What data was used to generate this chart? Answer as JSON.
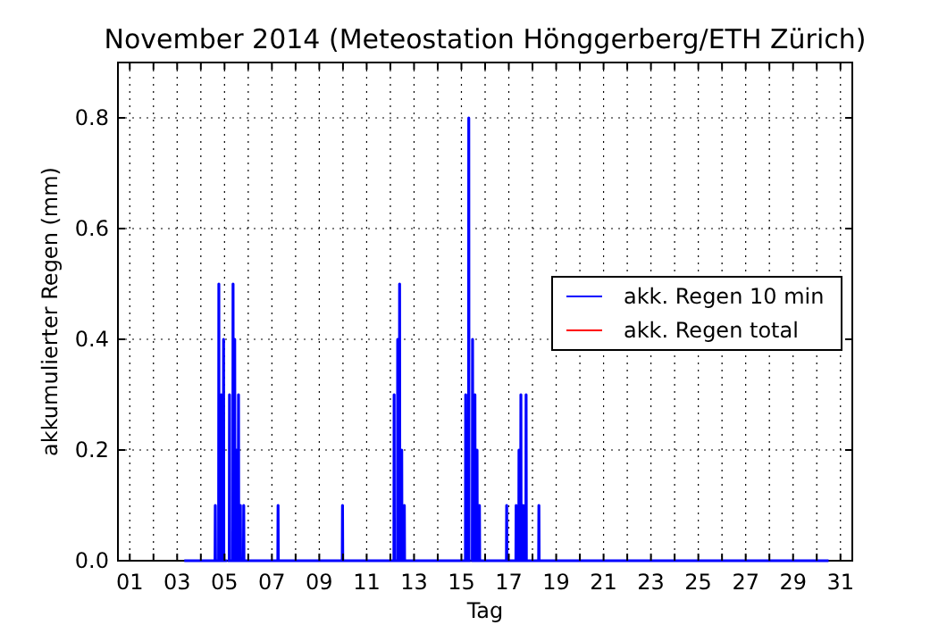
{
  "chart_data": {
    "type": "line",
    "title": "November 2014  (Meteostation Hönggerberg/ETH Zürich)",
    "xlabel": "Tag",
    "ylabel": "akkumulierter Regen (mm)",
    "xlim": [
      0.5,
      31.5
    ],
    "ylim": [
      0,
      0.9
    ],
    "xticks": [
      {
        "value": 1,
        "label": "01"
      },
      {
        "value": 2,
        "label": null
      },
      {
        "value": 3,
        "label": "03"
      },
      {
        "value": 4,
        "label": null
      },
      {
        "value": 5,
        "label": "05"
      },
      {
        "value": 6,
        "label": null
      },
      {
        "value": 7,
        "label": "07"
      },
      {
        "value": 8,
        "label": null
      },
      {
        "value": 9,
        "label": "09"
      },
      {
        "value": 10,
        "label": null
      },
      {
        "value": 11,
        "label": "11"
      },
      {
        "value": 12,
        "label": null
      },
      {
        "value": 13,
        "label": "13"
      },
      {
        "value": 14,
        "label": null
      },
      {
        "value": 15,
        "label": "15"
      },
      {
        "value": 16,
        "label": null
      },
      {
        "value": 17,
        "label": "17"
      },
      {
        "value": 18,
        "label": null
      },
      {
        "value": 19,
        "label": "19"
      },
      {
        "value": 20,
        "label": null
      },
      {
        "value": 21,
        "label": "21"
      },
      {
        "value": 22,
        "label": null
      },
      {
        "value": 23,
        "label": "23"
      },
      {
        "value": 24,
        "label": null
      },
      {
        "value": 25,
        "label": "25"
      },
      {
        "value": 26,
        "label": null
      },
      {
        "value": 27,
        "label": "27"
      },
      {
        "value": 28,
        "label": null
      },
      {
        "value": 29,
        "label": "29"
      },
      {
        "value": 30,
        "label": null
      },
      {
        "value": 31,
        "label": "31"
      }
    ],
    "yticks": [
      {
        "value": 0,
        "label": "0.0"
      },
      {
        "value": 0.2,
        "label": "0.2"
      },
      {
        "value": 0.4,
        "label": "0.4"
      },
      {
        "value": 0.6,
        "label": "0.6"
      },
      {
        "value": 0.8,
        "label": "0.8"
      }
    ],
    "grid": true,
    "legend": "right",
    "marker": "none",
    "series": [
      {
        "name": "akk. Regen 10 min",
        "color": "#0000ff",
        "x": [
          3.3,
          4.6,
          4.61,
          4.62,
          4.75,
          4.76,
          4.77,
          4.85,
          4.86,
          4.87,
          4.95,
          4.96,
          4.97,
          5.1,
          5.11,
          5.12,
          5.2,
          5.21,
          5.22,
          5.35,
          5.36,
          5.37,
          5.42,
          5.43,
          5.44,
          5.5,
          5.51,
          5.52,
          5.58,
          5.59,
          5.6,
          5.66,
          5.67,
          5.68,
          5.8,
          5.81,
          5.82,
          7.25,
          7.26,
          7.27,
          9.97,
          9.98,
          9.99,
          12.15,
          12.16,
          12.17,
          12.3,
          12.31,
          12.32,
          12.38,
          12.39,
          12.4,
          12.47,
          12.48,
          12.49,
          12.58,
          12.59,
          12.6,
          15.17,
          15.18,
          15.19,
          15.3,
          15.31,
          15.32,
          15.39,
          15.4,
          15.41,
          15.46,
          15.47,
          15.48,
          15.56,
          15.57,
          15.58,
          15.65,
          15.66,
          15.67,
          15.75,
          15.76,
          15.77,
          16.9,
          16.91,
          16.92,
          17.3,
          17.31,
          17.32,
          17.42,
          17.43,
          17.44,
          17.5,
          17.51,
          17.52,
          17.6,
          17.61,
          17.62,
          17.72,
          17.73,
          17.74,
          18.26,
          18.27,
          18.28,
          30.5
        ],
        "values": [
          0,
          0,
          0.1,
          0,
          0,
          0.5,
          0,
          0,
          0.3,
          0,
          0,
          0.4,
          0,
          0,
          null,
          0,
          0,
          0.3,
          0,
          0,
          0.5,
          0,
          0,
          0.4,
          0,
          0,
          0.2,
          0,
          0,
          0.3,
          0,
          0,
          0.1,
          0,
          0,
          0.1,
          0,
          0,
          0.1,
          0,
          0,
          0.1,
          0,
          0,
          0.3,
          0,
          0,
          0.4,
          0,
          0,
          0.5,
          0,
          0,
          0.2,
          0,
          0,
          0.1,
          0,
          0,
          0.3,
          0,
          0,
          0.8,
          0,
          0,
          null,
          0,
          0,
          0.4,
          0,
          0,
          0.3,
          0,
          0,
          0.2,
          0,
          0,
          0.1,
          0,
          0,
          0.1,
          0,
          0,
          0.1,
          0,
          0,
          0.2,
          0,
          0,
          0.3,
          0,
          0,
          0.1,
          0,
          0,
          0.3,
          0,
          0,
          0.1,
          0,
          0
        ]
      },
      {
        "name": "akk. Regen total",
        "color": "#ff0000"
      }
    ]
  }
}
